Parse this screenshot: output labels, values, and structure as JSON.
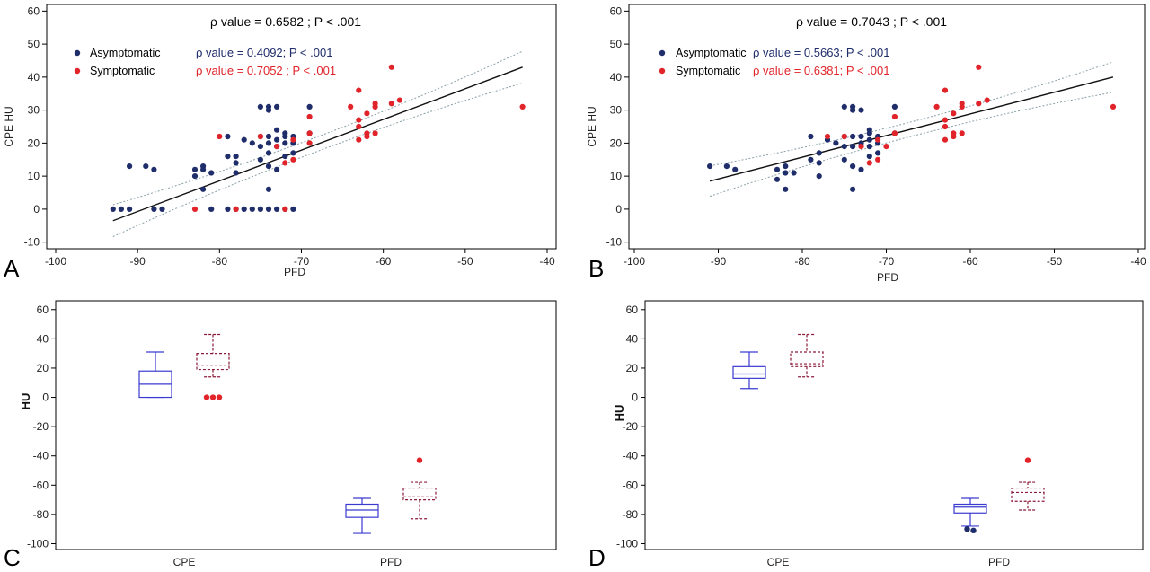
{
  "colors": {
    "asymptomatic": "#1f2d6b",
    "symptomatic": "#e0242a",
    "fit_line": "#111111",
    "ci_line": "#8aa0a8",
    "box_asym": "#3a3ad0",
    "box_sym": "#8b1a3a"
  },
  "chart_data": [
    {
      "panel": "A",
      "type": "scatter",
      "xlabel": "PFD",
      "ylabel": "CPE  HU",
      "xlim": [
        -100,
        -40
      ],
      "ylim": [
        -12,
        62
      ],
      "xticks": [
        -100,
        -90,
        -80,
        -70,
        -60,
        -50,
        -40
      ],
      "yticks": [
        -10,
        0,
        10,
        20,
        30,
        40,
        50,
        60
      ],
      "overall_stat": "ρ value = 0.6582 ;  P < .001",
      "legend": [
        {
          "name": "Asymptomatic",
          "stat": "ρ value = 0.4092;   P < .001"
        },
        {
          "name": "Symptomatic",
          "stat": "ρ value = 0.7052 ;  P < .001"
        }
      ],
      "fit": {
        "x": [
          -93,
          -43
        ],
        "y": [
          -3.5,
          43
        ]
      },
      "series": [
        {
          "name": "Asymptomatic",
          "points": [
            [
              -93,
              0
            ],
            [
              -92,
              0
            ],
            [
              -91,
              0
            ],
            [
              -91,
              13
            ],
            [
              -89,
              13
            ],
            [
              -88,
              0
            ],
            [
              -88,
              12
            ],
            [
              -87,
              0
            ],
            [
              -83,
              12
            ],
            [
              -83,
              10
            ],
            [
              -82,
              13
            ],
            [
              -82,
              12
            ],
            [
              -82,
              6
            ],
            [
              -81,
              11
            ],
            [
              -81,
              0
            ],
            [
              -79,
              16
            ],
            [
              -79,
              0
            ],
            [
              -79,
              22
            ],
            [
              -78,
              14
            ],
            [
              -78,
              11
            ],
            [
              -78,
              16
            ],
            [
              -78,
              0
            ],
            [
              -77,
              0
            ],
            [
              -77,
              21
            ],
            [
              -76,
              20
            ],
            [
              -76,
              0
            ],
            [
              -75,
              31
            ],
            [
              -75,
              22
            ],
            [
              -75,
              19
            ],
            [
              -75,
              15
            ],
            [
              -75,
              0
            ],
            [
              -74,
              31
            ],
            [
              -74,
              30
            ],
            [
              -74,
              22
            ],
            [
              -74,
              20
            ],
            [
              -74,
              17
            ],
            [
              -74,
              13
            ],
            [
              -74,
              6
            ],
            [
              -74,
              0
            ],
            [
              -73,
              31
            ],
            [
              -73,
              24
            ],
            [
              -73,
              21
            ],
            [
              -73,
              19
            ],
            [
              -73,
              12
            ],
            [
              -73,
              0
            ],
            [
              -72,
              22
            ],
            [
              -72,
              20
            ],
            [
              -72,
              16
            ],
            [
              -72,
              23
            ],
            [
              -72,
              0
            ],
            [
              -71,
              22
            ],
            [
              -71,
              20
            ],
            [
              -71,
              17
            ],
            [
              -71,
              0
            ],
            [
              -69,
              31
            ],
            [
              -69,
              23
            ]
          ]
        },
        {
          "name": "Symptomatic",
          "points": [
            [
              -83,
              0
            ],
            [
              -80,
              22
            ],
            [
              -78,
              0
            ],
            [
              -75,
              22
            ],
            [
              -73,
              19
            ],
            [
              -72,
              0
            ],
            [
              -72,
              14
            ],
            [
              -71,
              21
            ],
            [
              -71,
              15
            ],
            [
              -69,
              28
            ],
            [
              -69,
              23
            ],
            [
              -69,
              20
            ],
            [
              -64,
              31
            ],
            [
              -63,
              36
            ],
            [
              -63,
              27
            ],
            [
              -63,
              25
            ],
            [
              -63,
              21
            ],
            [
              -62,
              23
            ],
            [
              -62,
              22
            ],
            [
              -62,
              29
            ],
            [
              -61,
              31
            ],
            [
              -61,
              32
            ],
            [
              -61,
              23
            ],
            [
              -59,
              32
            ],
            [
              -59,
              43
            ],
            [
              -58,
              33
            ],
            [
              -43,
              31
            ]
          ]
        }
      ]
    },
    {
      "panel": "B",
      "type": "scatter",
      "xlabel": "PFD",
      "ylabel": "CPE  HU",
      "xlim": [
        -100,
        -40
      ],
      "ylim": [
        -12,
        62
      ],
      "xticks": [
        -100,
        -90,
        -80,
        -70,
        -60,
        -50,
        -40
      ],
      "yticks": [
        -10,
        0,
        10,
        20,
        30,
        40,
        50,
        60
      ],
      "overall_stat": "ρ value = 0.7043 ;  P < .001",
      "legend": [
        {
          "name": "Asymptomatic",
          "stat": "ρ value = 0.5663;    P < .001"
        },
        {
          "name": "Symptomatic",
          "stat": "ρ value = 0.6381;   P < .001"
        }
      ],
      "fit": {
        "x": [
          -91,
          -43
        ],
        "y": [
          8.5,
          40
        ]
      },
      "series": [
        {
          "name": "Asymptomatic",
          "points": [
            [
              -91,
              13
            ],
            [
              -89,
              13
            ],
            [
              -88,
              12
            ],
            [
              -83,
              12
            ],
            [
              -83,
              9
            ],
            [
              -82,
              13
            ],
            [
              -82,
              11
            ],
            [
              -82,
              6
            ],
            [
              -81,
              11
            ],
            [
              -79,
              15
            ],
            [
              -79,
              22
            ],
            [
              -78,
              17
            ],
            [
              -78,
              14
            ],
            [
              -78,
              10
            ],
            [
              -77,
              21
            ],
            [
              -76,
              20
            ],
            [
              -75,
              31
            ],
            [
              -75,
              22
            ],
            [
              -75,
              19
            ],
            [
              -75,
              15
            ],
            [
              -74,
              31
            ],
            [
              -74,
              30
            ],
            [
              -74,
              22
            ],
            [
              -74,
              19
            ],
            [
              -74,
              13
            ],
            [
              -74,
              6
            ],
            [
              -73,
              30
            ],
            [
              -73,
              22
            ],
            [
              -73,
              20
            ],
            [
              -73,
              12
            ],
            [
              -72,
              24
            ],
            [
              -72,
              23
            ],
            [
              -72,
              21
            ],
            [
              -72,
              19
            ],
            [
              -72,
              16
            ],
            [
              -71,
              22
            ],
            [
              -71,
              20
            ],
            [
              -71,
              17
            ],
            [
              -69,
              31
            ],
            [
              -69,
              23
            ]
          ]
        },
        {
          "name": "Symptomatic",
          "points": [
            [
              -77,
              22
            ],
            [
              -75,
              22
            ],
            [
              -73,
              19
            ],
            [
              -72,
              14
            ],
            [
              -71,
              21
            ],
            [
              -71,
              15
            ],
            [
              -70,
              19
            ],
            [
              -69,
              28
            ],
            [
              -69,
              23
            ],
            [
              -64,
              31
            ],
            [
              -63,
              36
            ],
            [
              -63,
              27
            ],
            [
              -63,
              25
            ],
            [
              -63,
              21
            ],
            [
              -62,
              23
            ],
            [
              -62,
              22
            ],
            [
              -62,
              29
            ],
            [
              -61,
              31
            ],
            [
              -61,
              32
            ],
            [
              -61,
              23
            ],
            [
              -59,
              32
            ],
            [
              -59,
              43
            ],
            [
              -58,
              33
            ],
            [
              -43,
              31
            ]
          ]
        }
      ]
    },
    {
      "panel": "C",
      "type": "box",
      "ylabel": "HU",
      "categories": [
        "CPE",
        "PFD"
      ],
      "ylim": [
        -104,
        66
      ],
      "yticks": [
        -100,
        -80,
        -60,
        -40,
        -20,
        0,
        20,
        40,
        60
      ],
      "series": [
        {
          "name": "Asymptomatic",
          "boxes": [
            {
              "whisker_low": 0,
              "q1": 0,
              "median": 9,
              "q3": 18,
              "whisker_high": 31,
              "outliers": []
            },
            {
              "whisker_low": -93,
              "q1": -82,
              "median": -77,
              "q3": -73,
              "whisker_high": -69,
              "outliers": []
            }
          ]
        },
        {
          "name": "Symptomatic",
          "boxes": [
            {
              "whisker_low": 14,
              "q1": 19,
              "median": 22,
              "q3": 30,
              "whisker_high": 43,
              "outliers": [
                0,
                0,
                0
              ]
            },
            {
              "whisker_low": -83,
              "q1": -70,
              "median": -68,
              "q3": -62,
              "whisker_high": -58,
              "outliers": [
                -43
              ]
            }
          ]
        }
      ]
    },
    {
      "panel": "D",
      "type": "box",
      "ylabel": "HU",
      "categories": [
        "CPE",
        "PFD"
      ],
      "ylim": [
        -104,
        66
      ],
      "yticks": [
        -100,
        -80,
        -60,
        -40,
        -20,
        0,
        20,
        40,
        60
      ],
      "series": [
        {
          "name": "Asymptomatic",
          "boxes": [
            {
              "whisker_low": 6,
              "q1": 13,
              "median": 16,
              "q3": 21,
              "whisker_high": 31,
              "outliers": []
            },
            {
              "whisker_low": -88,
              "q1": -79,
              "median": -75,
              "q3": -73,
              "whisker_high": -69,
              "outliers": [
                -90,
                -91
              ]
            }
          ]
        },
        {
          "name": "Symptomatic",
          "boxes": [
            {
              "whisker_low": 14,
              "q1": 21,
              "median": 23,
              "q3": 31,
              "whisker_high": 43,
              "outliers": []
            },
            {
              "whisker_low": -77,
              "q1": -71,
              "median": -65,
              "q3": -62,
              "whisker_high": -58,
              "outliers": [
                -43
              ]
            }
          ]
        }
      ]
    }
  ]
}
